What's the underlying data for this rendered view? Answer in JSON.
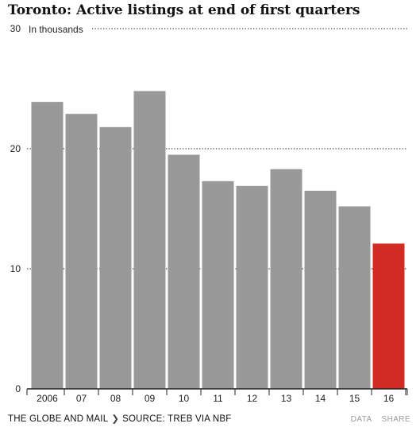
{
  "chart_data": {
    "type": "bar",
    "title": "Toronto: Active listings at end of first quarters",
    "ylabel": "In thousands",
    "categories": [
      "2006",
      "07",
      "08",
      "09",
      "10",
      "11",
      "12",
      "13",
      "14",
      "15",
      "16"
    ],
    "values": [
      23.9,
      22.9,
      21.8,
      24.8,
      19.5,
      17.3,
      16.9,
      18.3,
      16.5,
      15.2,
      12.1
    ],
    "ylim": [
      0,
      30
    ],
    "yticks": [
      "0",
      "10",
      "20",
      "30"
    ],
    "grid": true,
    "bar_color": "#999999",
    "highlight_index": 10,
    "highlight_color": "#d22b24"
  },
  "footer": {
    "publisher": "THE GLOBE AND MAIL",
    "separator": "❯",
    "source": "SOURCE: TREB VIA NBF",
    "data_link": "DATA",
    "share_link": "SHARE"
  }
}
